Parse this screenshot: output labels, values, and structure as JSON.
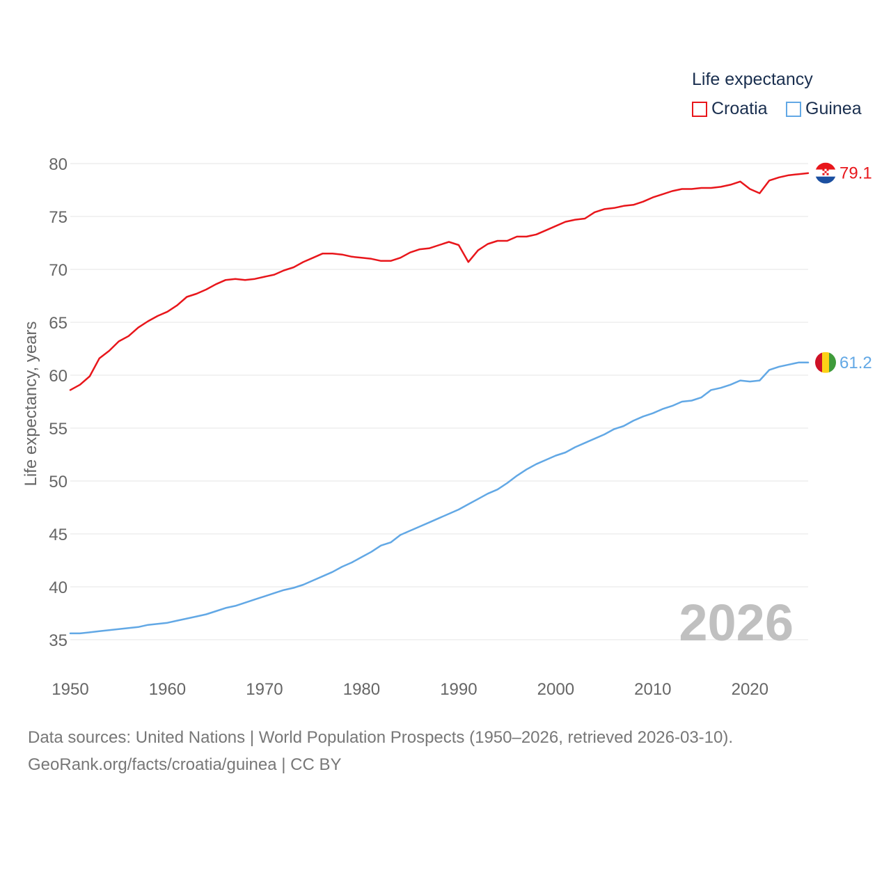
{
  "legend": {
    "title": "Life expectancy"
  },
  "footer": {
    "line1": "Data sources: United Nations | World Population Prospects (1950–2026, retrieved 2026-03-10).",
    "line2": "GeoRank.org/facts/croatia/guinea | CC BY"
  },
  "colors": {
    "croatia": "#e8161b",
    "guinea": "#62a8e5",
    "grid": "#e6e6e6",
    "axis_text": "#666666",
    "watermark": "#c0c0c0"
  },
  "chart_data": {
    "type": "line",
    "title": "Life expectancy",
    "xlabel": "",
    "ylabel": "Life expectancy, years",
    "xlim": [
      1950,
      2026
    ],
    "ylim": [
      33,
      81
    ],
    "x_ticks": [
      1950,
      1960,
      1970,
      1980,
      1990,
      2000,
      2010,
      2020
    ],
    "y_ticks": [
      35,
      40,
      45,
      50,
      55,
      60,
      65,
      70,
      75,
      80
    ],
    "year_watermark": "2026",
    "x": [
      1950,
      1951,
      1952,
      1953,
      1954,
      1955,
      1956,
      1957,
      1958,
      1959,
      1960,
      1961,
      1962,
      1963,
      1964,
      1965,
      1966,
      1967,
      1968,
      1969,
      1970,
      1971,
      1972,
      1973,
      1974,
      1975,
      1976,
      1977,
      1978,
      1979,
      1980,
      1981,
      1982,
      1983,
      1984,
      1985,
      1986,
      1987,
      1988,
      1989,
      1990,
      1991,
      1992,
      1993,
      1994,
      1995,
      1996,
      1997,
      1998,
      1999,
      2000,
      2001,
      2002,
      2003,
      2004,
      2005,
      2006,
      2007,
      2008,
      2009,
      2010,
      2011,
      2012,
      2013,
      2014,
      2015,
      2016,
      2017,
      2018,
      2019,
      2020,
      2021,
      2022,
      2023,
      2024,
      2025,
      2026
    ],
    "series": [
      {
        "name": "Croatia",
        "color": "#e8161b",
        "end_label": "79.1",
        "flag": "croatia-flag",
        "values": [
          58.6,
          59.1,
          59.9,
          61.6,
          62.3,
          63.2,
          63.7,
          64.5,
          65.1,
          65.6,
          66.0,
          66.6,
          67.4,
          67.7,
          68.1,
          68.6,
          69.0,
          69.1,
          69.0,
          69.1,
          69.3,
          69.5,
          69.9,
          70.2,
          70.7,
          71.1,
          71.5,
          71.5,
          71.4,
          71.2,
          71.1,
          71.0,
          70.8,
          70.8,
          71.1,
          71.6,
          71.9,
          72.0,
          72.3,
          72.6,
          72.3,
          70.7,
          71.8,
          72.4,
          72.7,
          72.7,
          73.1,
          73.1,
          73.3,
          73.7,
          74.1,
          74.5,
          74.7,
          74.8,
          75.4,
          75.7,
          75.8,
          76.0,
          76.1,
          76.4,
          76.8,
          77.1,
          77.4,
          77.6,
          77.6,
          77.7,
          77.7,
          77.8,
          78.0,
          78.3,
          77.6,
          77.2,
          78.4,
          78.7,
          78.9,
          79.0,
          79.1
        ]
      },
      {
        "name": "Guinea",
        "color": "#62a8e5",
        "end_label": "61.2",
        "flag": "guinea-flag",
        "values": [
          35.6,
          35.6,
          35.7,
          35.8,
          35.9,
          36.0,
          36.1,
          36.2,
          36.4,
          36.5,
          36.6,
          36.8,
          37.0,
          37.2,
          37.4,
          37.7,
          38.0,
          38.2,
          38.5,
          38.8,
          39.1,
          39.4,
          39.7,
          39.9,
          40.2,
          40.6,
          41.0,
          41.4,
          41.9,
          42.3,
          42.8,
          43.3,
          43.9,
          44.2,
          44.9,
          45.3,
          45.7,
          46.1,
          46.5,
          46.9,
          47.3,
          47.8,
          48.3,
          48.8,
          49.2,
          49.8,
          50.5,
          51.1,
          51.6,
          52.0,
          52.4,
          52.7,
          53.2,
          53.6,
          54.0,
          54.4,
          54.9,
          55.2,
          55.7,
          56.1,
          56.4,
          56.8,
          57.1,
          57.5,
          57.6,
          57.9,
          58.6,
          58.8,
          59.1,
          59.5,
          59.4,
          59.5,
          60.5,
          60.8,
          61.0,
          61.2,
          61.2
        ]
      }
    ]
  }
}
